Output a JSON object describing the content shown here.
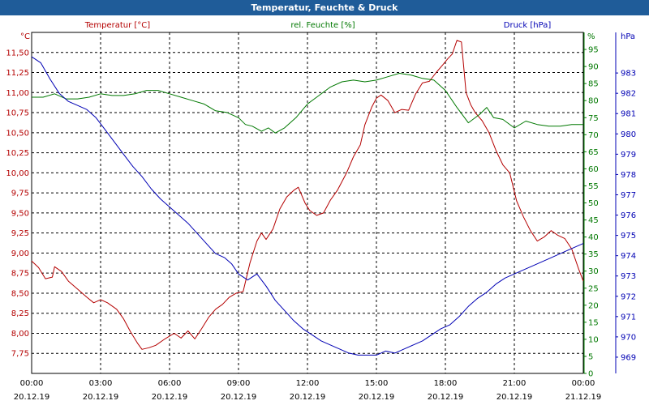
{
  "window": {
    "title": "Temperatur, Feuchte & Druck"
  },
  "chart_data": {
    "type": "line",
    "title": "Temperatur, Feuchte & Druck",
    "grid": true,
    "colors": {
      "temperature": "#b40000",
      "humidity": "#007800",
      "pressure": "#0000b4",
      "grid": "#000000",
      "title_bar": "#1f5c99"
    },
    "x_range_hours": [
      0,
      24
    ],
    "x_ticks": [
      {
        "h": 0,
        "time": "00:00",
        "date": "20.12.19"
      },
      {
        "h": 3,
        "time": "03:00",
        "date": "20.12.19"
      },
      {
        "h": 6,
        "time": "06:00",
        "date": "20.12.19"
      },
      {
        "h": 9,
        "time": "09:00",
        "date": "20.12.19"
      },
      {
        "h": 12,
        "time": "12:00",
        "date": "20.12.19"
      },
      {
        "h": 15,
        "time": "15:00",
        "date": "20.12.19"
      },
      {
        "h": 18,
        "time": "18:00",
        "date": "20.12.19"
      },
      {
        "h": 21,
        "time": "21:00",
        "date": "20.12.19"
      },
      {
        "h": 24,
        "time": "00:00",
        "date": "21.12.19"
      }
    ],
    "axes": {
      "temperature": {
        "label": "Temperatur [°C]",
        "unit": "°C",
        "ylim": [
          7.5,
          11.75
        ],
        "ticks": [
          "7,75",
          "8,00",
          "8,25",
          "8,50",
          "8,75",
          "9,00",
          "9,25",
          "9,50",
          "9,75",
          "10,00",
          "10,25",
          "10,50",
          "10,75",
          "11,00",
          "11,25",
          "11,50"
        ]
      },
      "humidity": {
        "label": "rel. Feuchte [%]",
        "unit": "%",
        "ylim": [
          0,
          100
        ],
        "ticks": [
          "0",
          "5",
          "10",
          "15",
          "20",
          "25",
          "30",
          "35",
          "40",
          "45",
          "50",
          "55",
          "60",
          "65",
          "70",
          "75",
          "80",
          "85",
          "90",
          "95"
        ]
      },
      "pressure": {
        "label": "Druck [hPa]",
        "unit": "hPa",
        "ylim": [
          968.2,
          985.0
        ],
        "ticks": [
          "969",
          "970",
          "971",
          "972",
          "973",
          "974",
          "975",
          "976",
          "977",
          "978",
          "979",
          "980",
          "981",
          "982",
          "983"
        ]
      }
    },
    "series": [
      {
        "name": "Temperatur [°C]",
        "axis": "temperature",
        "points": [
          [
            0,
            8.9
          ],
          [
            0.3,
            8.82
          ],
          [
            0.6,
            8.68
          ],
          [
            0.9,
            8.7
          ],
          [
            1.0,
            8.83
          ],
          [
            1.3,
            8.77
          ],
          [
            1.6,
            8.65
          ],
          [
            2.0,
            8.55
          ],
          [
            2.4,
            8.45
          ],
          [
            2.7,
            8.38
          ],
          [
            3.0,
            8.42
          ],
          [
            3.3,
            8.38
          ],
          [
            3.7,
            8.3
          ],
          [
            4.0,
            8.18
          ],
          [
            4.3,
            8.02
          ],
          [
            4.6,
            7.88
          ],
          [
            4.8,
            7.8
          ],
          [
            5.1,
            7.82
          ],
          [
            5.4,
            7.85
          ],
          [
            5.8,
            7.93
          ],
          [
            6.2,
            8.0
          ],
          [
            6.5,
            7.94
          ],
          [
            6.8,
            8.03
          ],
          [
            7.1,
            7.93
          ],
          [
            7.4,
            8.06
          ],
          [
            7.7,
            8.2
          ],
          [
            8.0,
            8.3
          ],
          [
            8.3,
            8.36
          ],
          [
            8.6,
            8.45
          ],
          [
            8.9,
            8.5
          ],
          [
            9.2,
            8.52
          ],
          [
            9.5,
            8.88
          ],
          [
            9.8,
            9.15
          ],
          [
            10.0,
            9.25
          ],
          [
            10.2,
            9.17
          ],
          [
            10.5,
            9.3
          ],
          [
            10.8,
            9.55
          ],
          [
            11.1,
            9.7
          ],
          [
            11.4,
            9.78
          ],
          [
            11.6,
            9.82
          ],
          [
            11.9,
            9.62
          ],
          [
            12.1,
            9.53
          ],
          [
            12.4,
            9.47
          ],
          [
            12.7,
            9.5
          ],
          [
            13.0,
            9.66
          ],
          [
            13.3,
            9.78
          ],
          [
            13.7,
            10.0
          ],
          [
            14.0,
            10.2
          ],
          [
            14.3,
            10.35
          ],
          [
            14.5,
            10.6
          ],
          [
            14.8,
            10.82
          ],
          [
            15.0,
            10.93
          ],
          [
            15.2,
            10.97
          ],
          [
            15.5,
            10.9
          ],
          [
            15.8,
            10.75
          ],
          [
            16.1,
            10.79
          ],
          [
            16.4,
            10.78
          ],
          [
            16.7,
            10.98
          ],
          [
            17.0,
            11.12
          ],
          [
            17.3,
            11.14
          ],
          [
            17.6,
            11.25
          ],
          [
            17.9,
            11.35
          ],
          [
            18.1,
            11.42
          ],
          [
            18.3,
            11.48
          ],
          [
            18.5,
            11.65
          ],
          [
            18.7,
            11.63
          ],
          [
            18.9,
            11.0
          ],
          [
            19.1,
            10.85
          ],
          [
            19.3,
            10.75
          ],
          [
            19.6,
            10.65
          ],
          [
            19.9,
            10.5
          ],
          [
            20.2,
            10.28
          ],
          [
            20.5,
            10.1
          ],
          [
            20.8,
            10.0
          ],
          [
            21.1,
            9.65
          ],
          [
            21.4,
            9.45
          ],
          [
            21.7,
            9.28
          ],
          [
            22.0,
            9.15
          ],
          [
            22.3,
            9.2
          ],
          [
            22.6,
            9.28
          ],
          [
            22.9,
            9.22
          ],
          [
            23.2,
            9.18
          ],
          [
            23.5,
            9.05
          ],
          [
            23.8,
            8.8
          ],
          [
            24.0,
            8.65
          ]
        ]
      },
      {
        "name": "rel. Feuchte [%]",
        "axis": "humidity",
        "points": [
          [
            0,
            81
          ],
          [
            0.5,
            81
          ],
          [
            1.0,
            82
          ],
          [
            1.5,
            80.5
          ],
          [
            2.0,
            80.5
          ],
          [
            2.5,
            81
          ],
          [
            3.0,
            82
          ],
          [
            3.5,
            81.5
          ],
          [
            4.0,
            81.5
          ],
          [
            4.5,
            82
          ],
          [
            5.0,
            83
          ],
          [
            5.5,
            83
          ],
          [
            6.0,
            82
          ],
          [
            6.5,
            81
          ],
          [
            7.0,
            80
          ],
          [
            7.5,
            79
          ],
          [
            8.0,
            77
          ],
          [
            8.5,
            76.5
          ],
          [
            9.0,
            75
          ],
          [
            9.3,
            73
          ],
          [
            9.6,
            72.5
          ],
          [
            10.0,
            71
          ],
          [
            10.3,
            72
          ],
          [
            10.6,
            70.5
          ],
          [
            11.0,
            72
          ],
          [
            11.5,
            75
          ],
          [
            12.0,
            79
          ],
          [
            12.5,
            81.5
          ],
          [
            13.0,
            84
          ],
          [
            13.5,
            85.5
          ],
          [
            14.0,
            86
          ],
          [
            14.5,
            85.5
          ],
          [
            15.0,
            86
          ],
          [
            15.5,
            87
          ],
          [
            16.0,
            88
          ],
          [
            16.5,
            87.5
          ],
          [
            17.0,
            86.5
          ],
          [
            17.5,
            86
          ],
          [
            18.0,
            83
          ],
          [
            18.5,
            78
          ],
          [
            19.0,
            73.5
          ],
          [
            19.5,
            76
          ],
          [
            19.8,
            78
          ],
          [
            20.1,
            75
          ],
          [
            20.5,
            74.5
          ],
          [
            21.0,
            72
          ],
          [
            21.5,
            74
          ],
          [
            22.0,
            73
          ],
          [
            22.5,
            72.5
          ],
          [
            23.0,
            72.5
          ],
          [
            23.5,
            73
          ],
          [
            24.0,
            73
          ]
        ]
      },
      {
        "name": "Druck [hPa]",
        "axis": "pressure",
        "points": [
          [
            0,
            983.8
          ],
          [
            0.4,
            983.5
          ],
          [
            0.8,
            982.7
          ],
          [
            1.2,
            982.0
          ],
          [
            1.6,
            981.6
          ],
          [
            2.0,
            981.4
          ],
          [
            2.4,
            981.2
          ],
          [
            2.8,
            980.8
          ],
          [
            3.2,
            980.2
          ],
          [
            3.6,
            979.6
          ],
          [
            4.0,
            979.0
          ],
          [
            4.4,
            978.4
          ],
          [
            4.8,
            977.9
          ],
          [
            5.2,
            977.3
          ],
          [
            5.6,
            976.8
          ],
          [
            6.0,
            976.4
          ],
          [
            6.4,
            976.0
          ],
          [
            6.8,
            975.6
          ],
          [
            7.2,
            975.1
          ],
          [
            7.6,
            974.6
          ],
          [
            8.0,
            974.1
          ],
          [
            8.4,
            973.9
          ],
          [
            8.7,
            973.6
          ],
          [
            9.0,
            973.1
          ],
          [
            9.4,
            972.8
          ],
          [
            9.8,
            973.1
          ],
          [
            10.2,
            972.5
          ],
          [
            10.6,
            971.8
          ],
          [
            11.0,
            971.3
          ],
          [
            11.4,
            970.8
          ],
          [
            11.8,
            970.4
          ],
          [
            12.2,
            970.1
          ],
          [
            12.6,
            969.8
          ],
          [
            13.0,
            969.6
          ],
          [
            13.4,
            969.4
          ],
          [
            13.8,
            969.2
          ],
          [
            14.2,
            969.1
          ],
          [
            14.6,
            969.1
          ],
          [
            15.0,
            969.1
          ],
          [
            15.4,
            969.3
          ],
          [
            15.8,
            969.2
          ],
          [
            16.2,
            969.4
          ],
          [
            16.6,
            969.6
          ],
          [
            17.0,
            969.8
          ],
          [
            17.4,
            970.1
          ],
          [
            17.8,
            970.4
          ],
          [
            18.2,
            970.6
          ],
          [
            18.6,
            971.0
          ],
          [
            19.0,
            971.5
          ],
          [
            19.4,
            971.9
          ],
          [
            19.8,
            972.2
          ],
          [
            20.2,
            972.6
          ],
          [
            20.6,
            972.9
          ],
          [
            21.0,
            973.1
          ],
          [
            21.4,
            973.3
          ],
          [
            21.8,
            973.5
          ],
          [
            22.2,
            973.7
          ],
          [
            22.6,
            973.9
          ],
          [
            23.0,
            974.1
          ],
          [
            23.4,
            974.3
          ],
          [
            23.8,
            974.5
          ],
          [
            24.0,
            974.6
          ]
        ]
      }
    ]
  }
}
